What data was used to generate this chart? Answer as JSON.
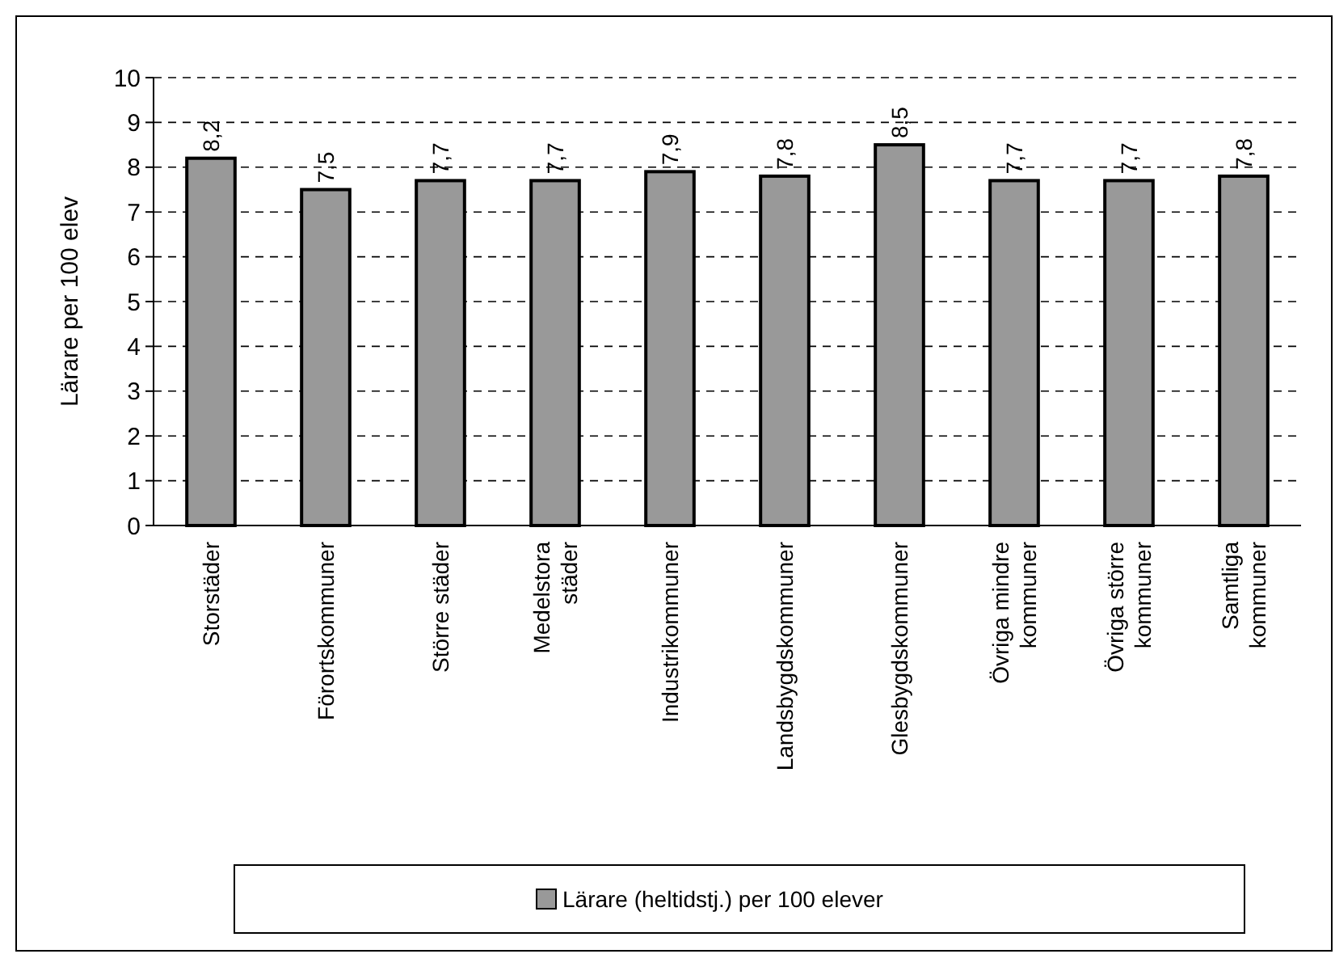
{
  "chart_data": {
    "type": "bar",
    "ylabel": "Lärare per 100 elev",
    "categories": [
      "Storstäder",
      "Förortskommuner",
      "Större städer",
      "Medelstora städer",
      "Industrikommuner",
      "Landsbygdskommuner",
      "Glesbygdskommuner",
      "Övriga mindre kommuner",
      "Övriga större kommuner",
      "Samtliga kommuner"
    ],
    "series": [
      {
        "name": "Lärare (heltidstj.) per 100 elever",
        "color": "#999999",
        "values": [
          8.2,
          7.5,
          7.7,
          7.7,
          7.9,
          7.8,
          8.5,
          7.7,
          7.7,
          7.8
        ],
        "value_labels": [
          "8,2",
          "7,5",
          "7,7",
          "7,7",
          "7,9",
          "7,8",
          "8,5",
          "7,7",
          "7,7",
          "7,8"
        ]
      }
    ],
    "ylim": [
      0,
      10
    ],
    "yticks": [
      0,
      1,
      2,
      3,
      4,
      5,
      6,
      7,
      8,
      9,
      10
    ],
    "grid": "y",
    "legend": "bottom"
  }
}
